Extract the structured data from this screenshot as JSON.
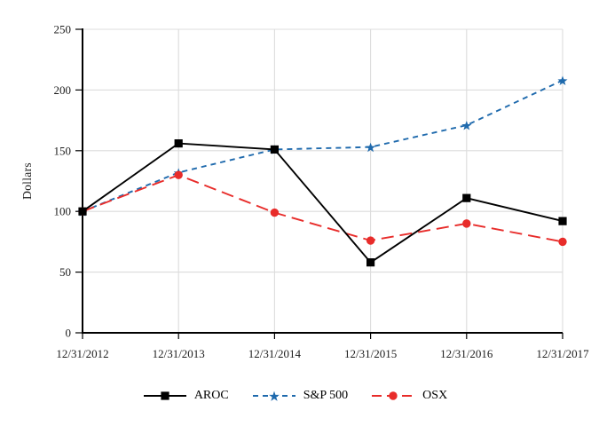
{
  "chart_data": {
    "type": "line",
    "title": "",
    "xlabel": "",
    "ylabel": "Dollars",
    "ylim": [
      0,
      250
    ],
    "yticks": [
      0,
      50,
      100,
      150,
      200,
      250
    ],
    "categories": [
      "12/31/2012",
      "12/31/2013",
      "12/31/2014",
      "12/31/2015",
      "12/31/2016",
      "12/31/2017"
    ],
    "grid": "both",
    "legend_position": "bottom",
    "series": [
      {
        "name": "AROC",
        "color": "#000000",
        "line_style": "solid",
        "marker": "square",
        "values": [
          100,
          156,
          151,
          58,
          111,
          92
        ]
      },
      {
        "name": "S&P 500",
        "color": "#1f6aad",
        "line_style": "dashed",
        "marker": "star",
        "values": [
          100,
          132,
          151,
          153,
          171,
          208
        ]
      },
      {
        "name": "OSX",
        "color": "#e82c2a",
        "line_style": "long-dash",
        "marker": "circle",
        "values": [
          100,
          130,
          99,
          76,
          90,
          75
        ]
      }
    ]
  },
  "colors": {
    "background": "#ffffff",
    "gridline": "#dcdcdc",
    "axis": "#000000",
    "text": "#1c1c1c"
  }
}
